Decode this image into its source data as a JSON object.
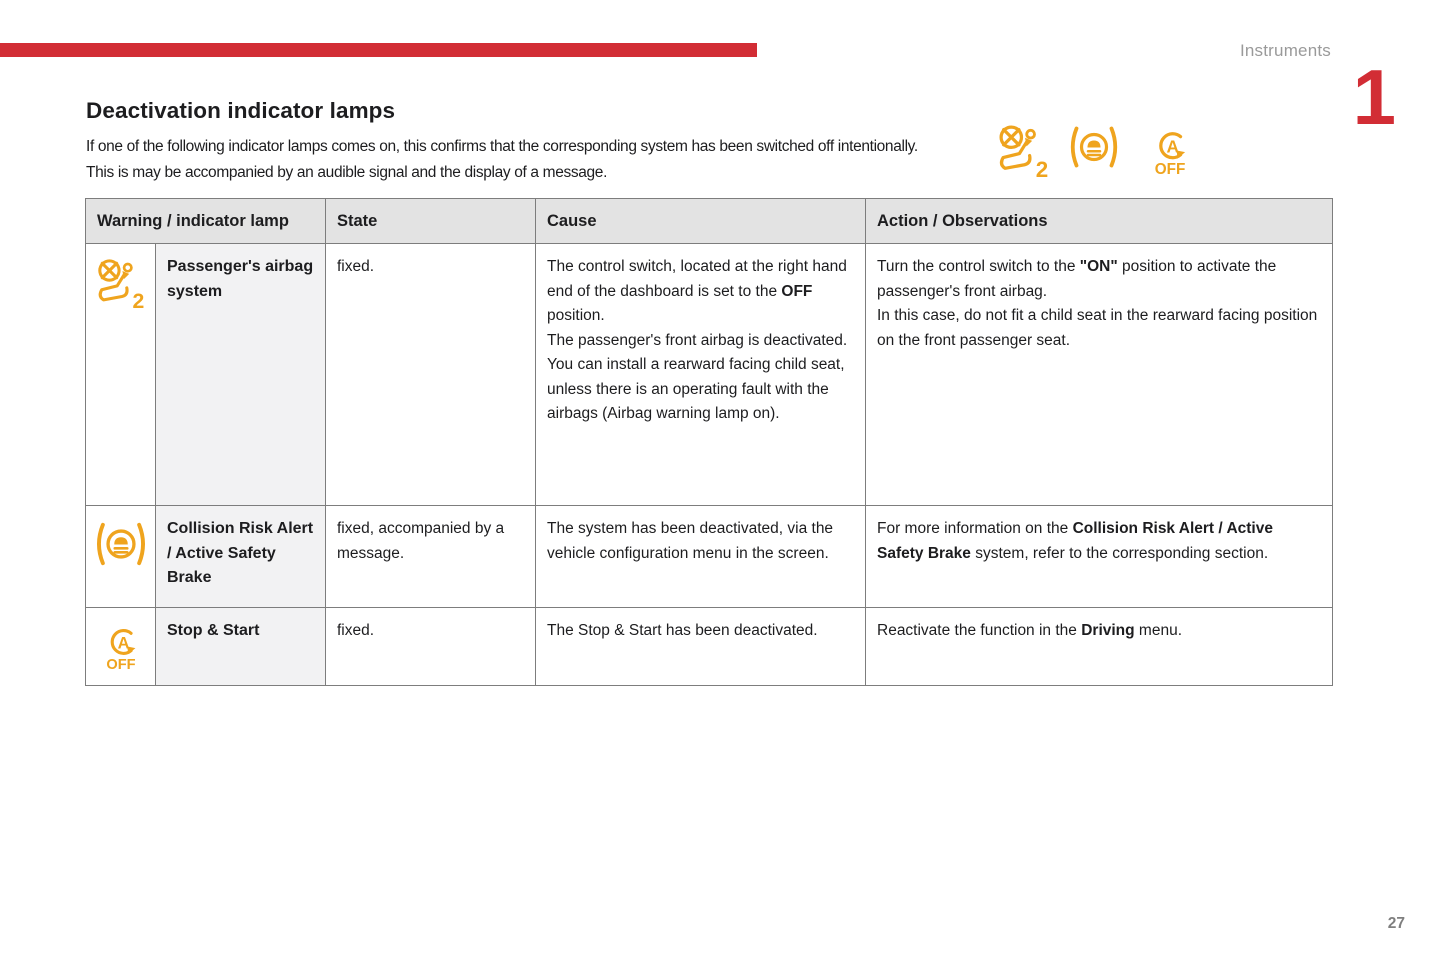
{
  "header": {
    "section_label": "Instruments",
    "chapter_number": "1"
  },
  "title": "Deactivation indicator lamps",
  "intro": {
    "line1": "If one of the following indicator lamps comes on, this confirms that the corresponding system has been switched off intentionally.",
    "line2": "This is may be accompanied by an audible signal and the display of a message."
  },
  "indicator_icons": [
    {
      "name": "passenger-airbag-deactivated"
    },
    {
      "name": "collision-risk-alert"
    },
    {
      "name": "stop-start-off"
    }
  ],
  "table": {
    "headers": {
      "lamp": "Warning / indicator lamp",
      "state": "State",
      "cause": "Cause",
      "action": "Action / Observations"
    },
    "rows": [
      {
        "icon": "passenger-airbag-deactivated",
        "name": "Passenger's airbag system",
        "state": "fixed.",
        "cause": [
          {
            "t": "The control switch, located at the right hand end of the dashboard is set to the "
          },
          {
            "t": "OFF",
            "b": true
          },
          {
            "t": " position.\nThe passenger's front airbag is deactivated.\nYou can install a rearward facing child seat, unless there is an operating fault with the airbags (Airbag warning lamp on)."
          }
        ],
        "action": [
          {
            "t": "Turn the control switch to the "
          },
          {
            "t": "\"ON\"",
            "b": true
          },
          {
            "t": " position to activate the passenger's front airbag.\nIn this case, do not fit a child seat in the rearward facing position on the front passenger seat."
          }
        ]
      },
      {
        "icon": "collision-risk-alert",
        "name": "Collision Risk Alert / Active Safety Brake",
        "state": "fixed, accompanied by a message.",
        "cause": [
          {
            "t": "The system has been deactivated, via the vehicle configuration menu in the screen."
          }
        ],
        "action": [
          {
            "t": "For more information on the "
          },
          {
            "t": "Collision Risk Alert / Active Safety Brake",
            "b": true
          },
          {
            "t": " system, refer to the corresponding section."
          }
        ]
      },
      {
        "icon": "stop-start-off",
        "name": "Stop & Start",
        "state": "fixed.",
        "cause": [
          {
            "t": "The Stop & Start has been deactivated."
          }
        ],
        "action": [
          {
            "t": "Reactivate the function in the "
          },
          {
            "t": "Driving",
            "b": true
          },
          {
            "t": " menu."
          }
        ]
      }
    ]
  },
  "footer": {
    "page_number": "27"
  },
  "colors": {
    "accent_red": "#d22d35",
    "icon_amber": "#efa41e",
    "header_bg": "#e3e3e3",
    "name_col_bg": "#f2f2f3",
    "border_gray": "#7d7d7d",
    "text_dark": "#1d1d1f",
    "muted_gray": "#9a9a9a",
    "page_num_gray": "#7f7f7f"
  }
}
